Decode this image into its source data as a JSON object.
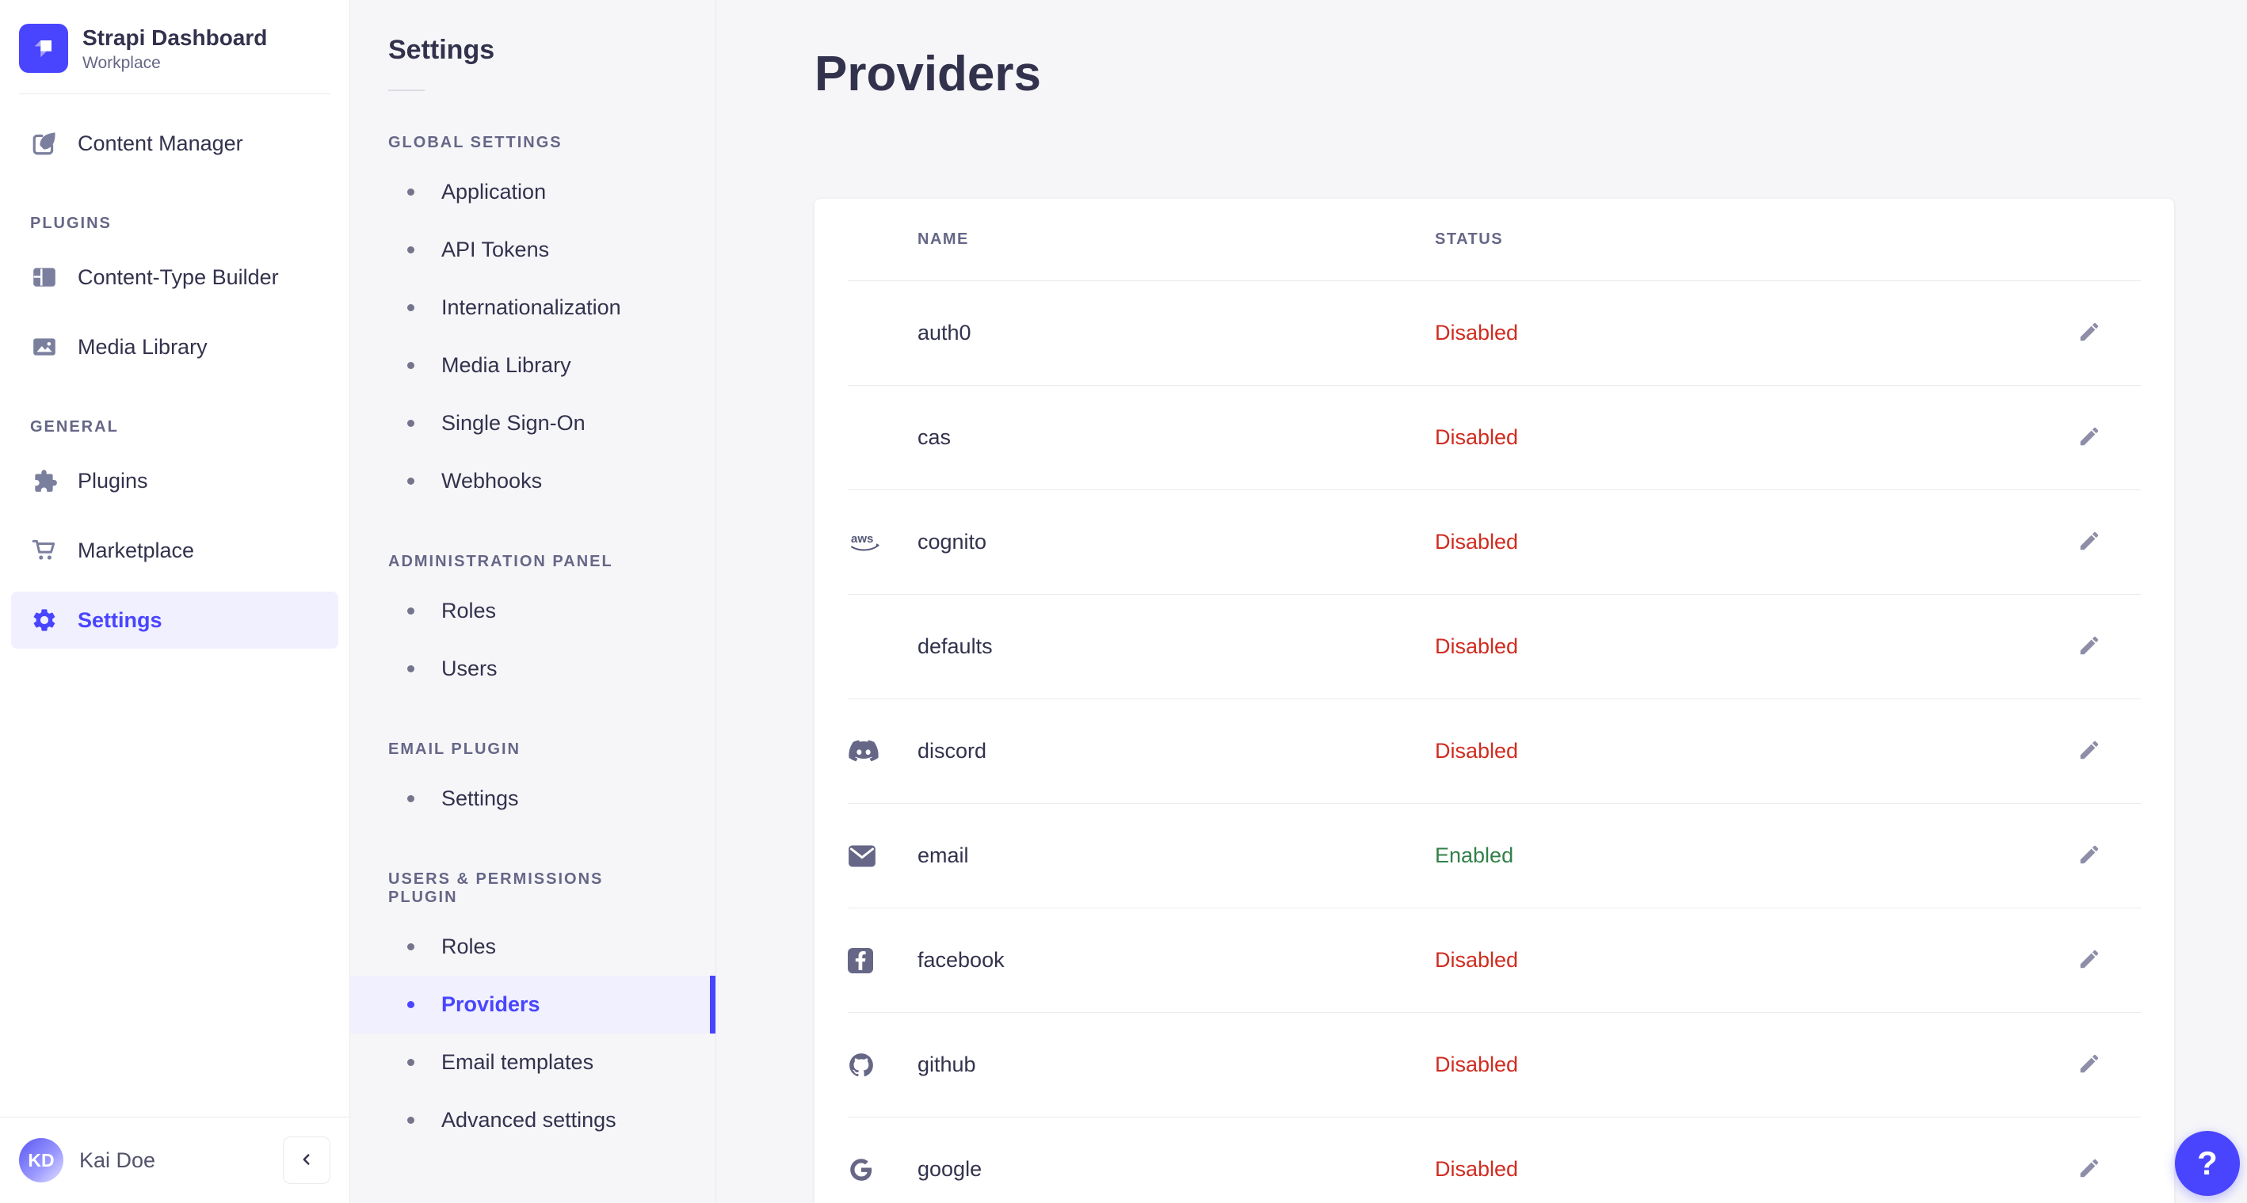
{
  "brand": {
    "title": "Strapi Dashboard",
    "subtitle": "Workplace"
  },
  "sidebar": {
    "sections": [
      {
        "label": null,
        "items": [
          {
            "label": "Content Manager",
            "icon": "content-manager-icon",
            "active": false
          }
        ]
      },
      {
        "label": "PLUGINS",
        "items": [
          {
            "label": "Content-Type Builder",
            "icon": "content-type-builder-icon",
            "active": false
          },
          {
            "label": "Media Library",
            "icon": "media-library-icon",
            "active": false
          }
        ]
      },
      {
        "label": "GENERAL",
        "items": [
          {
            "label": "Plugins",
            "icon": "plugins-icon",
            "active": false
          },
          {
            "label": "Marketplace",
            "icon": "marketplace-icon",
            "active": false
          },
          {
            "label": "Settings",
            "icon": "settings-gear-icon",
            "active": true
          }
        ]
      }
    ]
  },
  "user": {
    "name": "Kai Doe",
    "initials": "KD"
  },
  "subnav": {
    "title": "Settings",
    "sections": [
      {
        "label": "GLOBAL SETTINGS",
        "items": [
          {
            "label": "Application",
            "active": false
          },
          {
            "label": "API Tokens",
            "active": false
          },
          {
            "label": "Internationalization",
            "active": false
          },
          {
            "label": "Media Library",
            "active": false
          },
          {
            "label": "Single Sign-On",
            "active": false
          },
          {
            "label": "Webhooks",
            "active": false
          }
        ]
      },
      {
        "label": "ADMINISTRATION PANEL",
        "items": [
          {
            "label": "Roles",
            "active": false
          },
          {
            "label": "Users",
            "active": false
          }
        ]
      },
      {
        "label": "EMAIL PLUGIN",
        "items": [
          {
            "label": "Settings",
            "active": false
          }
        ]
      },
      {
        "label": "USERS & PERMISSIONS PLUGIN",
        "items": [
          {
            "label": "Roles",
            "active": false
          },
          {
            "label": "Providers",
            "active": true
          },
          {
            "label": "Email templates",
            "active": false
          },
          {
            "label": "Advanced settings",
            "active": false
          }
        ]
      }
    ]
  },
  "main": {
    "title": "Providers",
    "table": {
      "columns": [
        "NAME",
        "STATUS"
      ],
      "rows": [
        {
          "name": "auth0",
          "icon": null,
          "status": "Disabled"
        },
        {
          "name": "cas",
          "icon": null,
          "status": "Disabled"
        },
        {
          "name": "cognito",
          "icon": "aws-icon",
          "status": "Disabled"
        },
        {
          "name": "defaults",
          "icon": null,
          "status": "Disabled"
        },
        {
          "name": "discord",
          "icon": "discord-icon",
          "status": "Disabled"
        },
        {
          "name": "email",
          "icon": "email-icon",
          "status": "Enabled"
        },
        {
          "name": "facebook",
          "icon": "facebook-icon",
          "status": "Disabled"
        },
        {
          "name": "github",
          "icon": "github-icon",
          "status": "Disabled"
        },
        {
          "name": "google",
          "icon": "google-icon",
          "status": "Disabled"
        }
      ]
    }
  },
  "help": {
    "label": "?"
  },
  "colors": {
    "primary": "#4945ff",
    "primary_light": "#f0f0ff",
    "status": {
      "Enabled": "#328048",
      "Disabled": "#d02b20"
    },
    "text": "#32324d",
    "muted": "#666687",
    "border": "#eaeaef",
    "background": "#f6f6f9"
  }
}
